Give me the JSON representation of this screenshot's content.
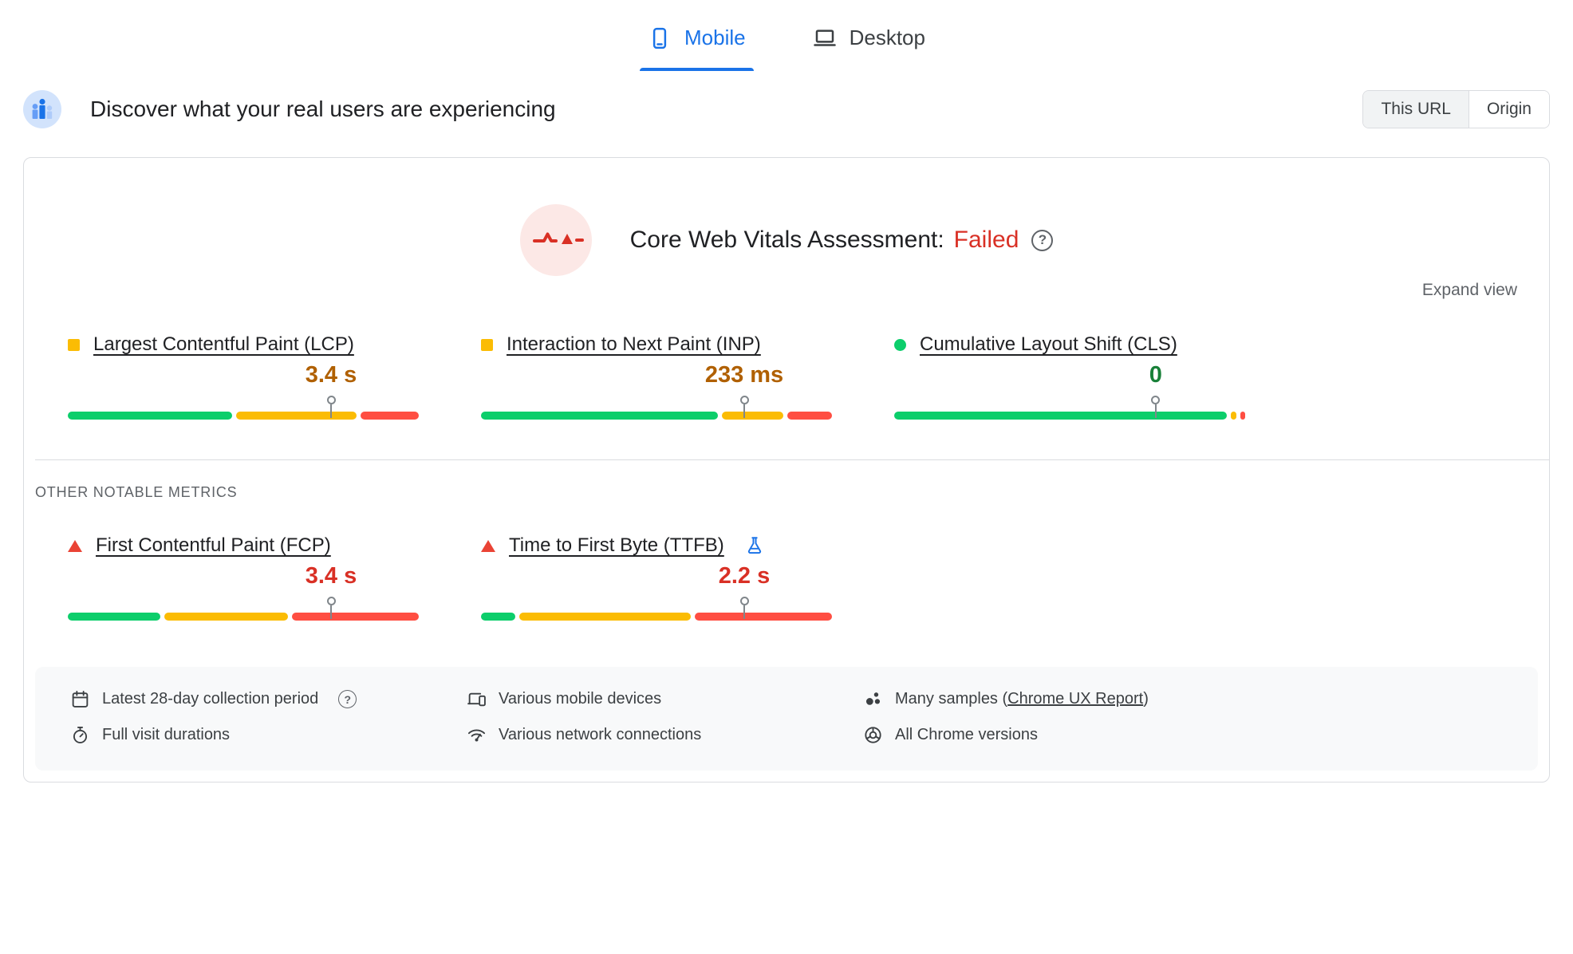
{
  "tabs": [
    {
      "label": "Mobile",
      "active": true
    },
    {
      "label": "Desktop",
      "active": false
    }
  ],
  "header": {
    "title": "Discover what your real users are experiencing",
    "scope_toggle": [
      {
        "label": "This URL",
        "selected": true
      },
      {
        "label": "Origin",
        "selected": false
      }
    ]
  },
  "assessment": {
    "label": "Core Web Vitals Assessment:",
    "result": "Failed",
    "result_color": "#d93025",
    "help_glyph": "?",
    "expand_label": "Expand view"
  },
  "other_metrics_heading": "OTHER NOTABLE METRICS",
  "bar_colors": {
    "good": "#0cce6b",
    "needs_improvement": "#fbbc04",
    "poor": "#ff4e42"
  },
  "metrics": [
    {
      "name": "Largest Contentful Paint (LCP)",
      "value": "3.4 s",
      "value_color": "#b06000",
      "shape": "square",
      "shape_color": "#fbbc04",
      "distribution_percent": {
        "good": 48,
        "needs_improvement": 35,
        "poor": 17
      },
      "p75_percent": 75
    },
    {
      "name": "Interaction to Next Paint (INP)",
      "value": "233 ms",
      "value_color": "#b06000",
      "shape": "square",
      "shape_color": "#fbbc04",
      "distribution_percent": {
        "good": 69,
        "needs_improvement": 18,
        "poor": 13
      },
      "p75_percent": 75
    },
    {
      "name": "Cumulative Layout Shift (CLS)",
      "value": "0",
      "value_color": "#188038",
      "shape": "circle",
      "shape_color": "#0cce6b",
      "distribution_percent": {
        "good": 97,
        "needs_improvement": 1.5,
        "poor": 1.5
      },
      "p75_percent": 74.5
    },
    {
      "name": "First Contentful Paint (FCP)",
      "value": "3.4 s",
      "value_color": "#d93025",
      "shape": "triangle",
      "shape_color": "#ea4335",
      "distribution_percent": {
        "good": 27,
        "needs_improvement": 36,
        "poor": 37
      },
      "p75_percent": 75
    },
    {
      "name": "Time to First Byte (TTFB)",
      "value": "2.2 s",
      "value_color": "#d93025",
      "shape": "triangle",
      "shape_color": "#ea4335",
      "experimental": true,
      "distribution_percent": {
        "good": 10,
        "needs_improvement": 50,
        "poor": 40
      },
      "p75_percent": 75
    }
  ],
  "footer": {
    "items": [
      {
        "icon": "calendar-icon",
        "label": "Latest 28-day collection period",
        "has_help": true,
        "help_glyph": "?"
      },
      {
        "icon": "devices-icon",
        "label": "Various mobile devices"
      },
      {
        "icon": "samples-icon",
        "label_prefix": "Many samples (",
        "link": "Chrome UX Report",
        "label_suffix": ")"
      },
      {
        "icon": "stopwatch-icon",
        "label": "Full visit durations"
      },
      {
        "icon": "network-icon",
        "label": "Various network connections"
      },
      {
        "icon": "chrome-icon",
        "label": "All Chrome versions"
      }
    ]
  }
}
